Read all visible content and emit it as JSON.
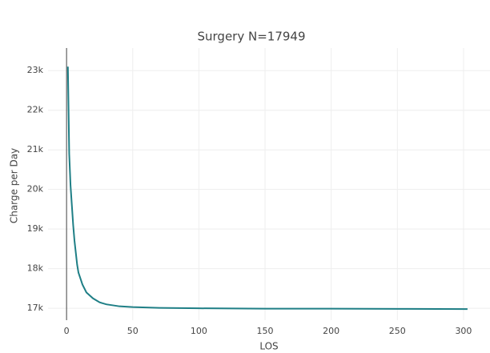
{
  "chart_data": {
    "type": "line",
    "title": "Surgery N=17949",
    "x_label": "LOS",
    "y_label": "Charge per Day",
    "x": [
      1,
      2,
      3,
      4,
      5,
      6,
      7,
      8,
      9,
      10,
      12,
      15,
      20,
      25,
      30,
      40,
      50,
      70,
      100,
      150,
      200,
      250,
      303
    ],
    "series": [
      {
        "color": "#1f7f86",
        "values": [
          23100,
          20900,
          20100,
          19600,
          19100,
          18700,
          18400,
          18100,
          17900,
          17800,
          17600,
          17400,
          17250,
          17150,
          17100,
          17050,
          17030,
          17010,
          17000,
          16990,
          16990,
          16985,
          16980
        ]
      }
    ],
    "xlim": [
      -14,
      320
    ],
    "ylim": [
      16700,
      23570
    ],
    "xticks": [
      0,
      50,
      100,
      150,
      200,
      250,
      300
    ],
    "yticks": [
      {
        "value": 17000,
        "label": "17k"
      },
      {
        "value": 18000,
        "label": "18k"
      },
      {
        "value": 19000,
        "label": "19k"
      },
      {
        "value": 20000,
        "label": "20k"
      },
      {
        "value": 21000,
        "label": "21k"
      },
      {
        "value": 22000,
        "label": "22k"
      },
      {
        "value": 23000,
        "label": "23k"
      }
    ],
    "grid": true
  }
}
